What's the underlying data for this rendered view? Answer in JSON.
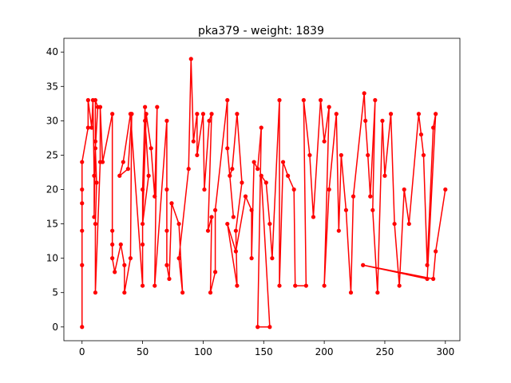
{
  "chart_data": {
    "type": "line",
    "title": "pka379 - weight: 1839",
    "color": "#ff0000",
    "x": [
      0,
      0,
      0,
      0,
      0,
      0,
      5,
      5,
      8,
      9,
      10,
      10,
      11,
      11,
      13,
      11,
      12,
      11,
      11,
      15,
      15,
      17,
      25,
      25,
      25,
      25,
      27,
      32,
      35,
      35,
      40,
      41,
      38,
      31,
      34,
      40,
      50,
      50,
      50,
      52,
      52,
      55,
      50,
      53,
      57,
      60,
      62,
      60,
      70,
      70,
      70,
      70,
      72,
      74,
      80,
      83,
      80,
      88,
      90,
      92,
      95,
      95,
      100,
      101,
      105,
      107,
      104,
      107,
      106,
      110,
      110,
      120,
      120,
      125,
      122,
      124,
      128,
      132,
      127,
      128,
      120,
      127,
      135,
      140,
      140,
      142,
      145,
      148,
      145,
      155,
      148,
      152,
      155,
      157,
      163,
      163,
      166,
      170,
      175,
      176,
      185,
      183,
      188,
      191,
      197,
      200,
      204,
      200,
      204,
      210,
      212,
      214,
      218,
      222,
      224,
      233,
      234,
      236,
      238,
      242,
      240,
      244,
      248,
      250,
      255,
      258,
      262,
      266,
      270,
      278,
      280,
      282,
      285,
      290,
      292,
      285,
      232,
      290,
      292,
      300
    ],
    "values": [
      0,
      9,
      14,
      18,
      20,
      24,
      29,
      33,
      29,
      33,
      22,
      16,
      27,
      33,
      32,
      26,
      21,
      15,
      5,
      24,
      32,
      24,
      31,
      14,
      12,
      10,
      8,
      12,
      9,
      5,
      10,
      31,
      23,
      22,
      24,
      31,
      6,
      12,
      20,
      32,
      30,
      22,
      15,
      31,
      26,
      19,
      32,
      6,
      30,
      20,
      14,
      9,
      7,
      18,
      15,
      5,
      10,
      23,
      39,
      27,
      31,
      25,
      31,
      20,
      30,
      31,
      14,
      16,
      5,
      8,
      17,
      33,
      26,
      16,
      22,
      23,
      31,
      21,
      14,
      6,
      15,
      11,
      19,
      17,
      10,
      24,
      23,
      29,
      0,
      0,
      22,
      21,
      15,
      10,
      33,
      6,
      24,
      22,
      20,
      6,
      6,
      33,
      25,
      16,
      33,
      27,
      32,
      6,
      20,
      31,
      14,
      25,
      17,
      5,
      19,
      34,
      30,
      25,
      19,
      33,
      17,
      5,
      30,
      22,
      31,
      15,
      6,
      20,
      15,
      31,
      28,
      25,
      9,
      29,
      31,
      7,
      9,
      7,
      11,
      20
    ],
    "xlim": [
      -15,
      312
    ],
    "ylim": [
      -2,
      42
    ],
    "xticks": [
      0,
      50,
      100,
      150,
      200,
      250,
      300
    ],
    "yticks": [
      0,
      5,
      10,
      15,
      20,
      25,
      30,
      35,
      40
    ]
  }
}
